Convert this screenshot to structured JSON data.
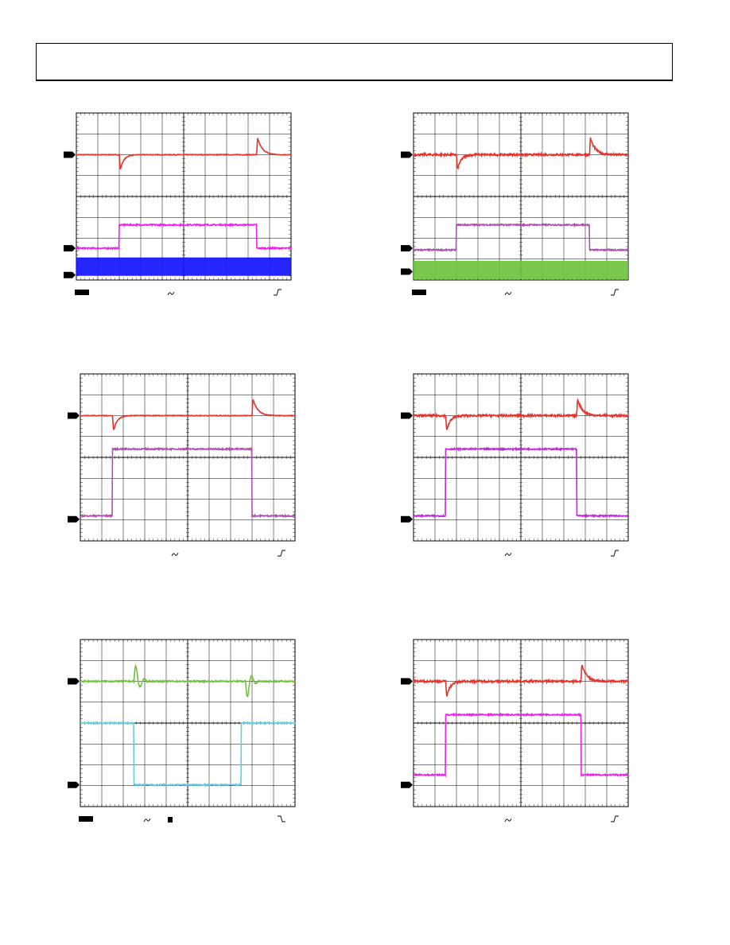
{
  "header": {
    "title": ""
  },
  "colors": {
    "red": "#e8332c",
    "magenta": "#f01ef0",
    "blue": "#1414ff",
    "purple": "#b04fb0",
    "green": "#6ec23c",
    "cyan": "#66cde0",
    "violet": "#c524e0",
    "grid": "#000000"
  },
  "figures": [
    {
      "id": "fig-1",
      "traces": [
        {
          "color": "red",
          "type": "pulse-response",
          "level": 0.75,
          "dip_at": 0.2,
          "spike_at": 0.84,
          "spike_dir": "up-then-down"
        },
        {
          "color": "magenta",
          "type": "square",
          "low": 0.19,
          "high": 0.33,
          "rise": 0.2,
          "fall": 0.84
        },
        {
          "color": "blue",
          "type": "noise-band",
          "center": 0.08,
          "width": 0.11
        }
      ],
      "markers": [
        0.75,
        0.19,
        0.03
      ],
      "indicators": {
        "box": true,
        "ac": true,
        "edge": "rise"
      }
    },
    {
      "id": "fig-2",
      "traces": [
        {
          "color": "red",
          "type": "pulse-response-noisy",
          "level": 0.75,
          "dip_at": 0.2,
          "spike_at": 0.82
        },
        {
          "color": "purple",
          "type": "square",
          "low": 0.18,
          "high": 0.33,
          "rise": 0.2,
          "fall": 0.82
        },
        {
          "color": "green",
          "type": "noise-band",
          "center": 0.06,
          "width": 0.11
        }
      ],
      "markers": [
        0.75,
        0.19,
        0.05
      ],
      "indicators": {
        "box": true,
        "ac": true,
        "edge": "rise"
      }
    },
    {
      "id": "fig-3",
      "traces": [
        {
          "color": "red",
          "type": "pulse-response",
          "level": 0.75,
          "dip_at": 0.15,
          "spike_at": 0.8
        },
        {
          "color": "purple",
          "type": "square",
          "low": 0.15,
          "high": 0.55,
          "rise": 0.15,
          "fall": 0.8
        }
      ],
      "markers": [
        0.75,
        0.13
      ],
      "indicators": {
        "box": false,
        "ac": true,
        "edge": "rise"
      }
    },
    {
      "id": "fig-4",
      "traces": [
        {
          "color": "red",
          "type": "pulse-response-noisy",
          "level": 0.75,
          "dip_at": 0.15,
          "spike_at": 0.76
        },
        {
          "color": "violet",
          "type": "square",
          "low": 0.15,
          "high": 0.55,
          "rise": 0.15,
          "fall": 0.76
        }
      ],
      "markers": [
        0.75,
        0.13
      ],
      "indicators": {
        "box": false,
        "ac": true,
        "edge": "rise"
      }
    },
    {
      "id": "fig-5",
      "traces": [
        {
          "color": "green",
          "type": "ringing",
          "level": 0.75,
          "ring_at": [
            0.25,
            0.77
          ]
        },
        {
          "color": "cyan",
          "type": "square-inverted",
          "low": 0.13,
          "high": 0.5,
          "fall": 0.25,
          "rise": 0.75
        }
      ],
      "markers": [
        0.75,
        0.13
      ],
      "indicators": {
        "box": true,
        "ac": true,
        "edge": "fall",
        "small_box": true
      }
    },
    {
      "id": "fig-6",
      "traces": [
        {
          "color": "red",
          "type": "pulse-response-noisy",
          "level": 0.75,
          "dip_at": 0.15,
          "spike_at": 0.78
        },
        {
          "color": "magenta",
          "type": "square",
          "low": 0.19,
          "high": 0.55,
          "rise": 0.15,
          "fall": 0.78
        }
      ],
      "markers": [
        0.75,
        0.13
      ],
      "indicators": {
        "box": false,
        "ac": true,
        "edge": "rise"
      }
    }
  ]
}
